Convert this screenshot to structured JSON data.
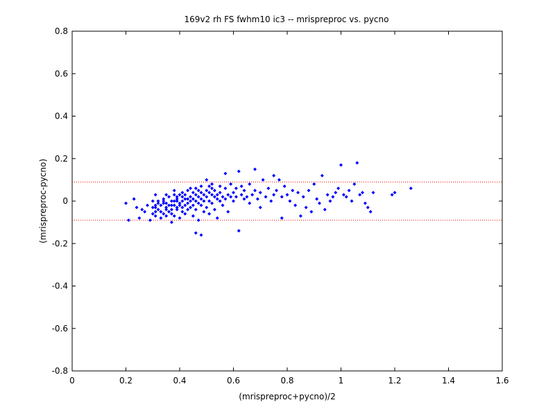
{
  "chart_data": {
    "type": "scatter",
    "title": "169v2 rh FS fwhm10 ic3 -- mrispreproc vs. pycno",
    "xlabel": "(mrispreproc+pycno)/2",
    "ylabel": "(mrispreproc-pycno)",
    "xlim": [
      0,
      1.6
    ],
    "ylim": [
      -0.8,
      0.8
    ],
    "xticks": [
      "0",
      "0.2",
      "0.4",
      "0.6",
      "0.8",
      "1",
      "1.2",
      "1.4",
      "1.6"
    ],
    "yticks": [
      "-0.8",
      "-0.6",
      "-0.4",
      "-0.2",
      "0",
      "0.2",
      "0.4",
      "0.6",
      "0.8"
    ],
    "grid": false,
    "reference_lines": [
      0.09,
      -0.09
    ],
    "colors": {
      "points": "#0000ff",
      "reference": "#ff0000",
      "axes": "#000000"
    },
    "series": [
      {
        "points": [
          [
            0.2,
            -0.01
          ],
          [
            0.21,
            -0.09
          ],
          [
            0.23,
            0.01
          ],
          [
            0.24,
            -0.03
          ],
          [
            0.25,
            -0.08
          ],
          [
            0.26,
            -0.04
          ],
          [
            0.27,
            -0.05
          ],
          [
            0.28,
            -0.02
          ],
          [
            0.29,
            -0.09
          ],
          [
            0.3,
            -0.03
          ],
          [
            0.3,
            0.0
          ],
          [
            0.3,
            -0.06
          ],
          [
            0.31,
            -0.05
          ],
          [
            0.31,
            0.03
          ],
          [
            0.31,
            -0.02
          ],
          [
            0.31,
            -0.07
          ],
          [
            0.31,
            -0.03
          ],
          [
            0.32,
            0.0
          ],
          [
            0.32,
            -0.04
          ],
          [
            0.32,
            -0.01
          ],
          [
            0.33,
            -0.05
          ],
          [
            0.33,
            -0.08
          ],
          [
            0.33,
            -0.02
          ],
          [
            0.34,
            0.0
          ],
          [
            0.34,
            0.01
          ],
          [
            0.34,
            -0.06
          ],
          [
            0.34,
            -0.01
          ],
          [
            0.35,
            -0.03
          ],
          [
            0.35,
            -0.04
          ],
          [
            0.35,
            -0.01
          ],
          [
            0.35,
            0.03
          ],
          [
            0.35,
            -0.07
          ],
          [
            0.36,
            -0.02
          ],
          [
            0.36,
            0.02
          ],
          [
            0.36,
            -0.05
          ],
          [
            0.37,
            -0.02
          ],
          [
            0.37,
            -0.1
          ],
          [
            0.37,
            0.0
          ],
          [
            0.37,
            -0.04
          ],
          [
            0.37,
            -0.06
          ],
          [
            0.38,
            0.0
          ],
          [
            0.38,
            -0.02
          ],
          [
            0.38,
            0.05
          ],
          [
            0.38,
            -0.07
          ],
          [
            0.38,
            0.03
          ],
          [
            0.39,
            -0.03
          ],
          [
            0.39,
            0.0
          ],
          [
            0.39,
            0.02
          ],
          [
            0.39,
            -0.04
          ],
          [
            0.39,
            0.01
          ],
          [
            0.4,
            -0.02
          ],
          [
            0.4,
            -0.01
          ],
          [
            0.4,
            -0.08
          ],
          [
            0.4,
            0.03
          ],
          [
            0.41,
            0.04
          ],
          [
            0.41,
            -0.03
          ],
          [
            0.41,
            0.0
          ],
          [
            0.41,
            -0.05
          ],
          [
            0.41,
            0.02
          ],
          [
            0.42,
            0.01
          ],
          [
            0.42,
            -0.02
          ],
          [
            0.42,
            -0.06
          ],
          [
            0.42,
            0.03
          ],
          [
            0.43,
            0.05
          ],
          [
            0.43,
            -0.01
          ],
          [
            0.43,
            0.01
          ],
          [
            0.43,
            -0.04
          ],
          [
            0.44,
            0.02
          ],
          [
            0.44,
            0.0
          ],
          [
            0.44,
            -0.03
          ],
          [
            0.44,
            0.06
          ],
          [
            0.45,
            0.01
          ],
          [
            0.45,
            -0.02
          ],
          [
            0.45,
            0.04
          ],
          [
            0.45,
            -0.07
          ],
          [
            0.46,
            0.0
          ],
          [
            0.46,
            0.03
          ],
          [
            0.46,
            -0.15
          ],
          [
            0.46,
            0.06
          ],
          [
            0.46,
            -0.04
          ],
          [
            0.47,
            0.02
          ],
          [
            0.47,
            -0.01
          ],
          [
            0.47,
            0.05
          ],
          [
            0.47,
            -0.09
          ],
          [
            0.48,
            0.01
          ],
          [
            0.48,
            0.04
          ],
          [
            0.48,
            -0.02
          ],
          [
            0.48,
            -0.16
          ],
          [
            0.48,
            0.07
          ],
          [
            0.49,
            0.03
          ],
          [
            0.49,
            0.0
          ],
          [
            0.49,
            -0.05
          ],
          [
            0.5,
            0.05
          ],
          [
            0.5,
            0.02
          ],
          [
            0.5,
            -0.03
          ],
          [
            0.5,
            0.1
          ],
          [
            0.51,
            0.04
          ],
          [
            0.51,
            0.0
          ],
          [
            0.51,
            0.07
          ],
          [
            0.51,
            -0.06
          ],
          [
            0.52,
            0.03
          ],
          [
            0.52,
            0.06
          ],
          [
            0.52,
            -0.01
          ],
          [
            0.52,
            0.08
          ],
          [
            0.53,
            0.02
          ],
          [
            0.53,
            0.05
          ],
          [
            0.53,
            -0.04
          ],
          [
            0.54,
            0.01
          ],
          [
            0.54,
            0.03
          ],
          [
            0.54,
            -0.08
          ],
          [
            0.55,
            0.07
          ],
          [
            0.55,
            0.0
          ],
          [
            0.55,
            0.04
          ],
          [
            0.56,
            0.02
          ],
          [
            0.56,
            -0.02
          ],
          [
            0.57,
            0.06
          ],
          [
            0.57,
            0.01
          ],
          [
            0.57,
            0.13
          ],
          [
            0.58,
            0.03
          ],
          [
            0.58,
            -0.05
          ],
          [
            0.59,
            0.08
          ],
          [
            0.59,
            0.02
          ],
          [
            0.6,
            0.04
          ],
          [
            0.6,
            0.0
          ],
          [
            0.61,
            0.06
          ],
          [
            0.61,
            0.02
          ],
          [
            0.62,
            0.14
          ],
          [
            0.62,
            -0.14
          ],
          [
            0.63,
            0.03
          ],
          [
            0.63,
            0.07
          ],
          [
            0.64,
            0.01
          ],
          [
            0.64,
            0.05
          ],
          [
            0.65,
            0.02
          ],
          [
            0.66,
            0.08
          ],
          [
            0.66,
            -0.01
          ],
          [
            0.67,
            0.03
          ],
          [
            0.68,
            0.15
          ],
          [
            0.68,
            0.05
          ],
          [
            0.69,
            0.01
          ],
          [
            0.7,
            0.04
          ],
          [
            0.7,
            -0.03
          ],
          [
            0.71,
            0.1
          ],
          [
            0.72,
            0.02
          ],
          [
            0.73,
            0.06
          ],
          [
            0.74,
            0.0
          ],
          [
            0.75,
            0.03
          ],
          [
            0.75,
            0.12
          ],
          [
            0.76,
            0.05
          ],
          [
            0.77,
            0.1
          ],
          [
            0.78,
            0.02
          ],
          [
            0.78,
            -0.08
          ],
          [
            0.79,
            0.07
          ],
          [
            0.8,
            0.03
          ],
          [
            0.81,
            0.0
          ],
          [
            0.82,
            0.05
          ],
          [
            0.83,
            -0.02
          ],
          [
            0.84,
            0.04
          ],
          [
            0.85,
            -0.07
          ],
          [
            0.86,
            0.02
          ],
          [
            0.87,
            -0.03
          ],
          [
            0.88,
            0.05
          ],
          [
            0.89,
            -0.05
          ],
          [
            0.9,
            0.08
          ],
          [
            0.91,
            0.01
          ],
          [
            0.92,
            -0.01
          ],
          [
            0.93,
            0.12
          ],
          [
            0.94,
            -0.04
          ],
          [
            0.95,
            0.03
          ],
          [
            0.96,
            0.0
          ],
          [
            0.97,
            0.02
          ],
          [
            0.98,
            0.04
          ],
          [
            0.99,
            0.06
          ],
          [
            1.0,
            0.17
          ],
          [
            1.01,
            0.03
          ],
          [
            1.02,
            0.02
          ],
          [
            1.03,
            0.05
          ],
          [
            1.04,
            0.0
          ],
          [
            1.05,
            0.08
          ],
          [
            1.06,
            0.18
          ],
          [
            1.07,
            0.03
          ],
          [
            1.08,
            0.04
          ],
          [
            1.09,
            -0.01
          ],
          [
            1.1,
            -0.03
          ],
          [
            1.11,
            -0.05
          ],
          [
            1.12,
            0.04
          ],
          [
            1.19,
            0.03
          ],
          [
            1.2,
            0.04
          ],
          [
            1.26,
            0.06
          ]
        ]
      }
    ]
  }
}
